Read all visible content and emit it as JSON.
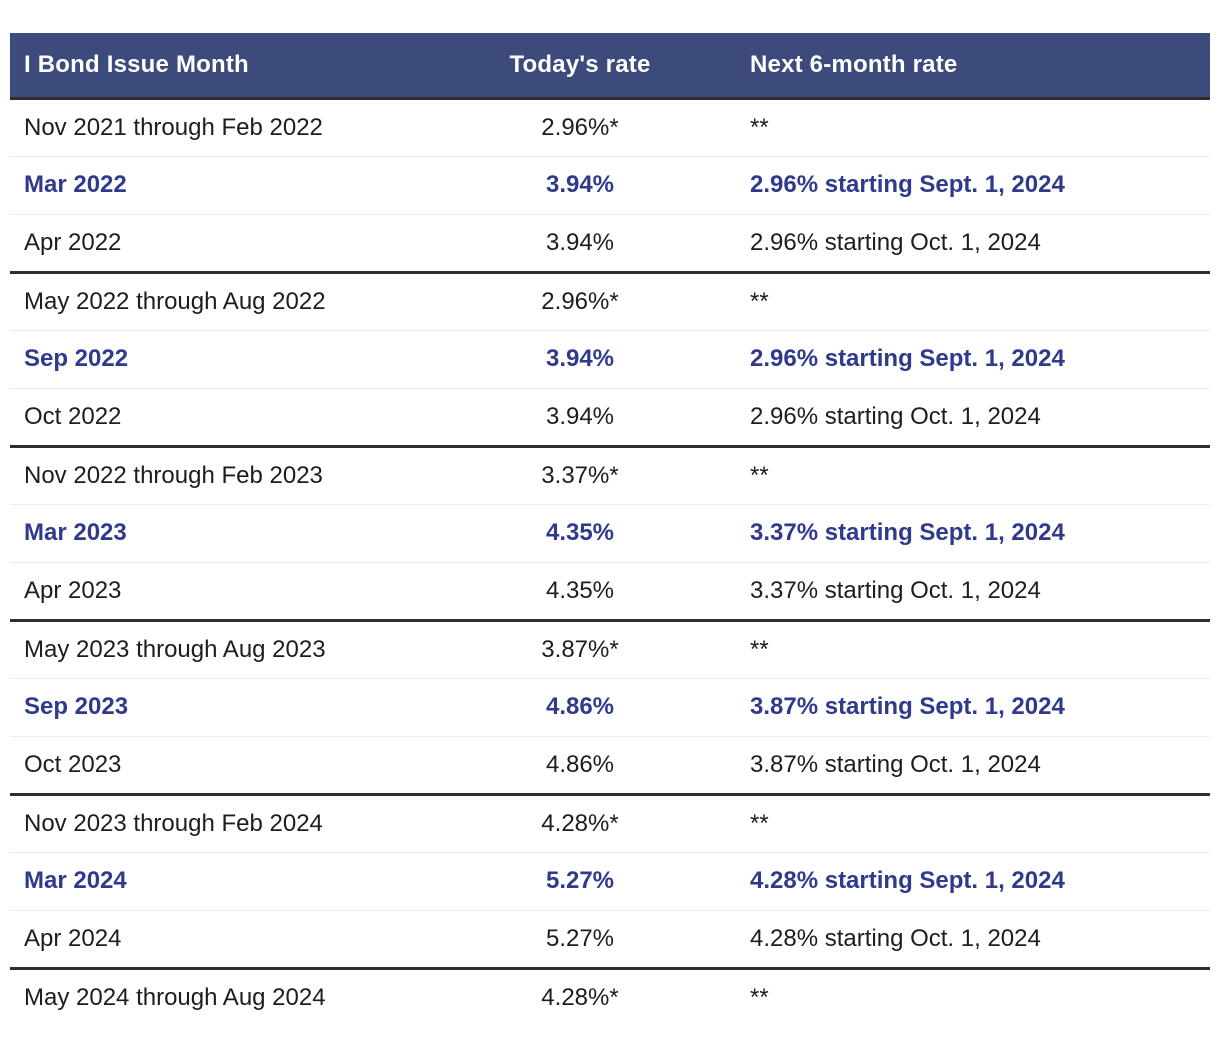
{
  "chart_data": {
    "type": "table",
    "columns": [
      "I Bond Issue Month",
      "Today's rate",
      "Next 6-month rate"
    ],
    "rows": [
      {
        "issue_month": "Nov 2021 through Feb 2022",
        "todays_rate": "2.96%*",
        "next_6_month_rate": "**",
        "emphasized": false,
        "group_end": false
      },
      {
        "issue_month": "Mar 2022",
        "todays_rate": "3.94%",
        "next_6_month_rate": "2.96% starting Sept. 1, 2024",
        "emphasized": true,
        "group_end": false
      },
      {
        "issue_month": "Apr 2022",
        "todays_rate": "3.94%",
        "next_6_month_rate": "2.96% starting Oct. 1, 2024",
        "emphasized": false,
        "group_end": true
      },
      {
        "issue_month": "May 2022 through Aug 2022",
        "todays_rate": "2.96%*",
        "next_6_month_rate": "**",
        "emphasized": false,
        "group_end": false
      },
      {
        "issue_month": "Sep 2022",
        "todays_rate": "3.94%",
        "next_6_month_rate": "2.96% starting Sept. 1, 2024",
        "emphasized": true,
        "group_end": false
      },
      {
        "issue_month": "Oct 2022",
        "todays_rate": "3.94%",
        "next_6_month_rate": "2.96% starting Oct. 1, 2024",
        "emphasized": false,
        "group_end": true
      },
      {
        "issue_month": "Nov 2022 through Feb 2023",
        "todays_rate": "3.37%*",
        "next_6_month_rate": "**",
        "emphasized": false,
        "group_end": false
      },
      {
        "issue_month": "Mar 2023",
        "todays_rate": "4.35%",
        "next_6_month_rate": "3.37% starting Sept. 1, 2024",
        "emphasized": true,
        "group_end": false
      },
      {
        "issue_month": "Apr 2023",
        "todays_rate": "4.35%",
        "next_6_month_rate": "3.37% starting Oct. 1, 2024",
        "emphasized": false,
        "group_end": true
      },
      {
        "issue_month": "May 2023 through Aug 2023",
        "todays_rate": "3.87%*",
        "next_6_month_rate": "**",
        "emphasized": false,
        "group_end": false
      },
      {
        "issue_month": "Sep 2023",
        "todays_rate": "4.86%",
        "next_6_month_rate": "3.87% starting Sept. 1, 2024",
        "emphasized": true,
        "group_end": false
      },
      {
        "issue_month": "Oct 2023",
        "todays_rate": "4.86%",
        "next_6_month_rate": "3.87% starting Oct. 1, 2024",
        "emphasized": false,
        "group_end": true
      },
      {
        "issue_month": "Nov 2023 through Feb 2024",
        "todays_rate": "4.28%*",
        "next_6_month_rate": "**",
        "emphasized": false,
        "group_end": false
      },
      {
        "issue_month": "Mar 2024",
        "todays_rate": "5.27%",
        "next_6_month_rate": "4.28% starting Sept. 1, 2024",
        "emphasized": true,
        "group_end": false
      },
      {
        "issue_month": "Apr 2024",
        "todays_rate": "5.27%",
        "next_6_month_rate": "4.28% starting Oct. 1, 2024",
        "emphasized": false,
        "group_end": true
      },
      {
        "issue_month": "May 2024 through Aug 2024",
        "todays_rate": "4.28%*",
        "next_6_month_rate": "**",
        "emphasized": false,
        "group_end": false
      }
    ]
  },
  "colors": {
    "header_bg": "#3d4a7c",
    "header_text": "#ffffff",
    "body_text": "#1d1d1d",
    "emphasis_text": "#2f3a8c",
    "divider_dark": "#2e2e2e",
    "divider_light": "#ececec",
    "page_bg": "#ffffff"
  }
}
